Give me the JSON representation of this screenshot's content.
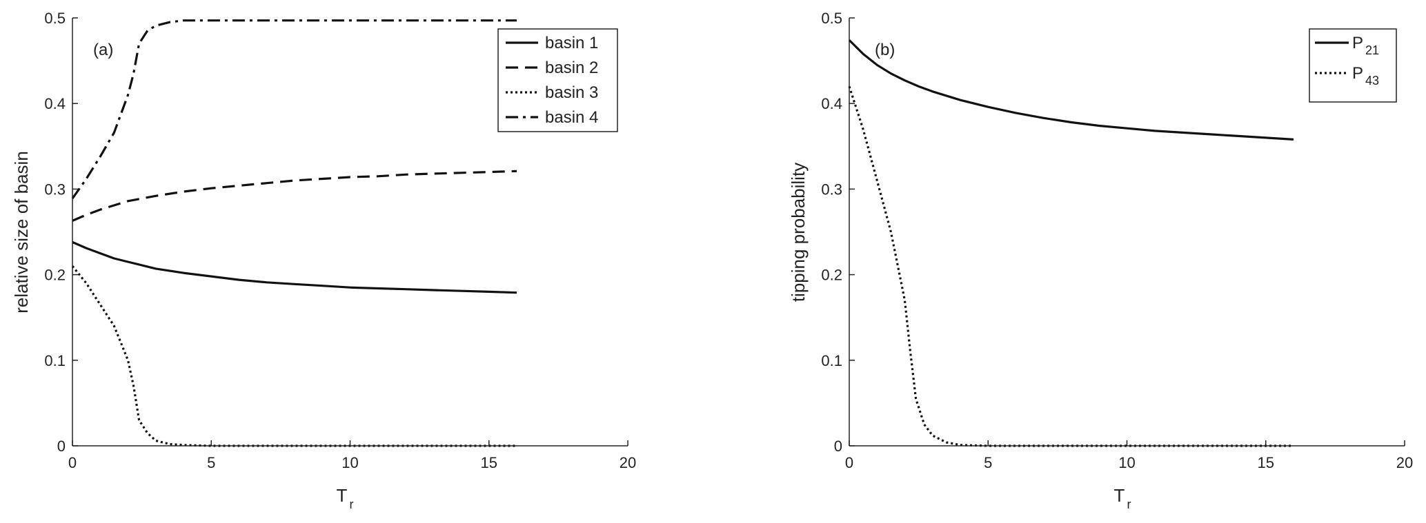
{
  "chart_data": [
    {
      "type": "line",
      "panel_label": "(a)",
      "xlabel": "T",
      "xlabel_sub": "r",
      "ylabel": "relative size of basin",
      "xlim": [
        0,
        20
      ],
      "ylim": [
        0,
        0.5
      ],
      "xticks": [
        "0",
        "5",
        "10",
        "15",
        "20"
      ],
      "yticks": [
        "0",
        "0.1",
        "0.2",
        "0.3",
        "0.4",
        "0.5"
      ],
      "legend_position": "top-right",
      "series": [
        {
          "name": "basin 1",
          "style": "solid",
          "x": [
            0,
            0.5,
            1,
            1.5,
            2,
            2.5,
            3,
            4,
            5,
            6,
            7,
            8,
            9,
            10,
            11,
            12,
            13,
            14,
            15,
            16
          ],
          "y": [
            0.238,
            0.231,
            0.225,
            0.219,
            0.215,
            0.211,
            0.207,
            0.202,
            0.198,
            0.194,
            0.191,
            0.189,
            0.187,
            0.185,
            0.184,
            0.183,
            0.182,
            0.181,
            0.18,
            0.179
          ]
        },
        {
          "name": "basin 2",
          "style": "dashed",
          "x": [
            0,
            0.5,
            1,
            1.5,
            2,
            2.5,
            3,
            4,
            5,
            6,
            7,
            8,
            9,
            10,
            11,
            12,
            13,
            14,
            15,
            16
          ],
          "y": [
            0.263,
            0.27,
            0.276,
            0.281,
            0.286,
            0.289,
            0.292,
            0.297,
            0.301,
            0.304,
            0.307,
            0.31,
            0.312,
            0.314,
            0.315,
            0.317,
            0.318,
            0.319,
            0.32,
            0.321
          ]
        },
        {
          "name": "basin 3",
          "style": "dotted",
          "x": [
            0,
            0.5,
            1,
            1.5,
            2,
            2.2,
            2.4,
            2.7,
            3,
            3.5,
            4,
            5,
            6,
            8,
            10,
            12,
            14,
            16
          ],
          "y": [
            0.21,
            0.19,
            0.165,
            0.14,
            0.1,
            0.07,
            0.03,
            0.015,
            0.006,
            0.002,
            0.001,
            0,
            0,
            0,
            0,
            0,
            0,
            0
          ]
        },
        {
          "name": "basin 4",
          "style": "dashdot",
          "x": [
            0,
            0.5,
            1,
            1.5,
            2,
            2.2,
            2.4,
            2.7,
            3,
            3.5,
            4,
            5,
            6,
            8,
            10,
            12,
            14,
            16
          ],
          "y": [
            0.289,
            0.312,
            0.338,
            0.366,
            0.41,
            0.435,
            0.47,
            0.485,
            0.491,
            0.495,
            0.497,
            0.497,
            0.497,
            0.497,
            0.497,
            0.497,
            0.497,
            0.497
          ]
        }
      ]
    },
    {
      "type": "line",
      "panel_label": "(b)",
      "xlabel": "T",
      "xlabel_sub": "r",
      "ylabel": "tipping probability",
      "xlim": [
        0,
        20
      ],
      "ylim": [
        0,
        0.5
      ],
      "xticks": [
        "0",
        "5",
        "10",
        "15",
        "20"
      ],
      "yticks": [
        "0",
        "0.1",
        "0.2",
        "0.3",
        "0.4",
        "0.5"
      ],
      "legend_position": "top-right",
      "series": [
        {
          "name": "P",
          "name_sub": "21",
          "style": "solid",
          "x": [
            0,
            0.5,
            1,
            1.5,
            2,
            2.5,
            3,
            4,
            5,
            6,
            7,
            8,
            9,
            10,
            11,
            12,
            13,
            14,
            15,
            16
          ],
          "y": [
            0.474,
            0.458,
            0.445,
            0.435,
            0.427,
            0.42,
            0.414,
            0.404,
            0.396,
            0.389,
            0.383,
            0.378,
            0.374,
            0.371,
            0.368,
            0.366,
            0.364,
            0.362,
            0.36,
            0.358
          ]
        },
        {
          "name": "P",
          "name_sub": "43",
          "style": "dotted",
          "x": [
            0,
            0.5,
            1,
            1.5,
            2,
            2.2,
            2.4,
            2.7,
            3,
            3.5,
            4,
            5,
            6,
            8,
            10,
            12,
            14,
            16
          ],
          "y": [
            0.42,
            0.37,
            0.31,
            0.25,
            0.17,
            0.11,
            0.055,
            0.025,
            0.012,
            0.004,
            0.001,
            0,
            0,
            0,
            0,
            0,
            0,
            0
          ]
        }
      ]
    }
  ]
}
